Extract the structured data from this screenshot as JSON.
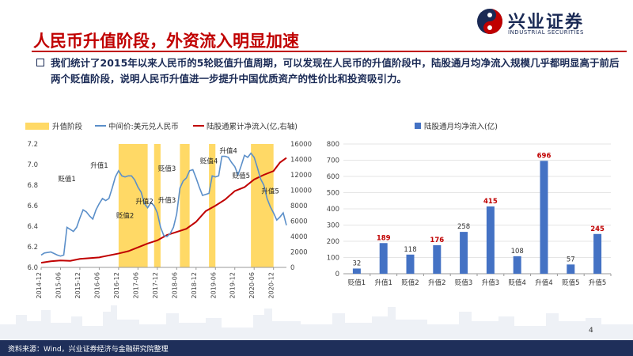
{
  "brand": {
    "name_cn": "兴业证券",
    "name_en": "INDUSTRIAL SECURITIES"
  },
  "title": "人民币升值阶段，外资流入明显加速",
  "paragraph": "我们统计了2015年以来人民币的5轮贬值升值周期，可以发现在人民币的升值阶段中，陆股通月均净流入规模几乎都明显高于前后两个贬值阶段，说明人民币升值进一步提升中国优质资产的性价比和投资吸引力。",
  "footer": {
    "source": "资料来源：Wind，兴业证券经济与金融研究院整理",
    "page": "4"
  },
  "colors": {
    "brand": "#1a2a55",
    "title": "#c00000",
    "band": "#ffd966",
    "usdcny": "#5b8fc9",
    "flow": "#c00000",
    "bar": "#4472c4"
  },
  "chart_data": [
    {
      "type": "line",
      "legend": [
        "升值阶段",
        "中间价:美元兑人民币",
        "陆股通累计净流入(亿,右轴)"
      ],
      "legend_position": "top",
      "x_ticks": [
        "2014-12",
        "2015-06",
        "2015-12",
        "2016-06",
        "2016-12",
        "2017-06",
        "2017-12",
        "2018-06",
        "2018-12",
        "2019-06",
        "2019-12",
        "2020-06",
        "2020-12"
      ],
      "x_range": [
        "2014-12",
        "2021-04"
      ],
      "ylim_left": [
        6.0,
        7.2
      ],
      "yticks_left": [
        "6.0",
        "6.2",
        "6.4",
        "6.6",
        "6.8",
        "7.0",
        "7.2"
      ],
      "ylim_right": [
        0,
        16000
      ],
      "yticks_right": [
        "0",
        "2000",
        "4000",
        "6000",
        "8000",
        "10000",
        "12000",
        "14000",
        "16000"
      ],
      "appreciation_periods": [
        [
          "2016-12",
          "2017-09"
        ],
        [
          "2017-11",
          "2018-01"
        ],
        [
          "2018-07",
          "2018-10"
        ],
        [
          "2019-04",
          "2019-06"
        ],
        [
          "2020-05",
          "2020-12"
        ]
      ],
      "annotations": [
        {
          "label": "贬值1",
          "x": "2015-08",
          "y": 6.84
        },
        {
          "label": "升值1",
          "x": "2016-06",
          "y": 6.97
        },
        {
          "label": "贬值2",
          "x": "2017-02",
          "y": 6.48
        },
        {
          "label": "升值2",
          "x": "2017-08",
          "y": 6.62
        },
        {
          "label": "贬值3",
          "x": "2018-03",
          "y": 6.94
        },
        {
          "label": "升值3",
          "x": "2018-03",
          "y": 6.63
        },
        {
          "label": "贬值4",
          "x": "2019-04",
          "y": 7.01
        },
        {
          "label": "升值4",
          "x": "2019-10",
          "y": 7.11
        },
        {
          "label": "贬值5",
          "x": "2020-02",
          "y": 6.87
        },
        {
          "label": "升值5",
          "x": "2020-11",
          "y": 6.72
        }
      ],
      "series": [
        {
          "name": "中间价:美元兑人民币",
          "axis": "left",
          "points": [
            [
              "2014-12",
              6.12
            ],
            [
              "2015-01",
              6.14
            ],
            [
              "2015-03",
              6.15
            ],
            [
              "2015-05",
              6.12
            ],
            [
              "2015-06",
              6.11
            ],
            [
              "2015-07",
              6.12
            ],
            [
              "2015-08",
              6.39
            ],
            [
              "2015-09",
              6.37
            ],
            [
              "2015-10",
              6.35
            ],
            [
              "2015-11",
              6.39
            ],
            [
              "2015-12",
              6.48
            ],
            [
              "2016-01",
              6.56
            ],
            [
              "2016-02",
              6.54
            ],
            [
              "2016-03",
              6.5
            ],
            [
              "2016-04",
              6.47
            ],
            [
              "2016-05",
              6.56
            ],
            [
              "2016-06",
              6.62
            ],
            [
              "2016-07",
              6.67
            ],
            [
              "2016-08",
              6.65
            ],
            [
              "2016-09",
              6.67
            ],
            [
              "2016-10",
              6.77
            ],
            [
              "2016-11",
              6.88
            ],
            [
              "2016-12",
              6.94
            ],
            [
              "2017-01",
              6.89
            ],
            [
              "2017-02",
              6.88
            ],
            [
              "2017-03",
              6.89
            ],
            [
              "2017-04",
              6.89
            ],
            [
              "2017-05",
              6.85
            ],
            [
              "2017-06",
              6.78
            ],
            [
              "2017-07",
              6.73
            ],
            [
              "2017-08",
              6.62
            ],
            [
              "2017-09",
              6.58
            ],
            [
              "2017-10",
              6.63
            ],
            [
              "2017-11",
              6.6
            ],
            [
              "2017-12",
              6.53
            ],
            [
              "2018-01",
              6.39
            ],
            [
              "2018-02",
              6.31
            ],
            [
              "2018-03",
              6.3
            ],
            [
              "2018-04",
              6.33
            ],
            [
              "2018-05",
              6.39
            ],
            [
              "2018-06",
              6.52
            ],
            [
              "2018-07",
              6.77
            ],
            [
              "2018-08",
              6.84
            ],
            [
              "2018-09",
              6.87
            ],
            [
              "2018-10",
              6.94
            ],
            [
              "2018-11",
              6.95
            ],
            [
              "2018-12",
              6.87
            ],
            [
              "2019-01",
              6.78
            ],
            [
              "2019-02",
              6.7
            ],
            [
              "2019-03",
              6.71
            ],
            [
              "2019-04",
              6.72
            ],
            [
              "2019-05",
              6.89
            ],
            [
              "2019-06",
              6.88
            ],
            [
              "2019-07",
              6.89
            ],
            [
              "2019-08",
              7.08
            ],
            [
              "2019-09",
              7.08
            ],
            [
              "2019-10",
              7.07
            ],
            [
              "2019-11",
              7.02
            ],
            [
              "2019-12",
              6.98
            ],
            [
              "2020-01",
              6.9
            ],
            [
              "2020-02",
              6.99
            ],
            [
              "2020-03",
              7.09
            ],
            [
              "2020-04",
              7.07
            ],
            [
              "2020-05",
              7.11
            ],
            [
              "2020-06",
              7.07
            ],
            [
              "2020-07",
              6.97
            ],
            [
              "2020-08",
              6.86
            ],
            [
              "2020-09",
              6.8
            ],
            [
              "2020-10",
              6.67
            ],
            [
              "2020-11",
              6.59
            ],
            [
              "2020-12",
              6.53
            ],
            [
              "2021-01",
              6.46
            ],
            [
              "2021-02",
              6.49
            ],
            [
              "2021-03",
              6.53
            ],
            [
              "2021-04",
              6.41
            ]
          ]
        },
        {
          "name": "陆股通累计净流入(亿,右轴)",
          "axis": "right",
          "points": [
            [
              "2014-12",
              600
            ],
            [
              "2015-03",
              800
            ],
            [
              "2015-06",
              900
            ],
            [
              "2015-09",
              850
            ],
            [
              "2015-12",
              1100
            ],
            [
              "2016-06",
              1300
            ],
            [
              "2016-12",
              1800
            ],
            [
              "2017-03",
              2100
            ],
            [
              "2017-06",
              2600
            ],
            [
              "2017-09",
              3100
            ],
            [
              "2017-12",
              3500
            ],
            [
              "2018-03",
              4200
            ],
            [
              "2018-06",
              4600
            ],
            [
              "2018-09",
              5000
            ],
            [
              "2018-12",
              5900
            ],
            [
              "2019-03",
              7300
            ],
            [
              "2019-06",
              8000
            ],
            [
              "2019-09",
              8800
            ],
            [
              "2019-12",
              9900
            ],
            [
              "2020-03",
              10400
            ],
            [
              "2020-06",
              11400
            ],
            [
              "2020-09",
              12000
            ],
            [
              "2020-12",
              12500
            ],
            [
              "2021-02",
              13600
            ],
            [
              "2021-04",
              14200
            ]
          ]
        }
      ]
    },
    {
      "type": "bar",
      "legend": [
        "陆股通月均净流入(亿)"
      ],
      "legend_position": "top",
      "categories": [
        "贬值1",
        "升值1",
        "贬值2",
        "升值2",
        "贬值3",
        "升值3",
        "贬值4",
        "升值4",
        "贬值5",
        "升值5"
      ],
      "values": [
        32,
        189,
        118,
        176,
        258,
        415,
        108,
        696,
        57,
        245
      ],
      "highlighted": [
        false,
        true,
        false,
        true,
        false,
        true,
        false,
        true,
        false,
        true
      ],
      "ylim": [
        0,
        800
      ],
      "yticks": [
        "0",
        "100",
        "200",
        "300",
        "400",
        "500",
        "600",
        "700",
        "800"
      ]
    }
  ]
}
